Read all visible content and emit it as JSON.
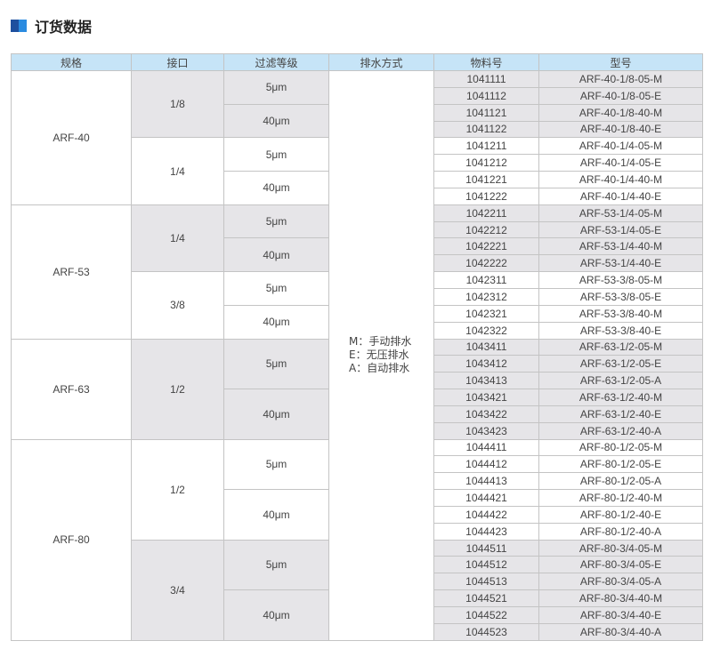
{
  "title": "订货数据",
  "colors": {
    "header_bg": "#c6e4f7",
    "shade": "#e6e5e8",
    "accent_dark": "#1d4f9e",
    "accent_light": "#2a8be0"
  },
  "headers": [
    "规格",
    "接口",
    "过滤等级",
    "排水方式",
    "物料号",
    "型号"
  ],
  "drain_options": [
    "M：手动排水",
    "E：无压排水",
    "A：自动排水"
  ],
  "specs": [
    {
      "name": "ARF-40",
      "ports": [
        {
          "port": "1/8",
          "shaded": true,
          "filters": [
            {
              "grade": "5μm",
              "items": [
                [
                  "1041111",
                  "ARF-40-1/8-05-M"
                ],
                [
                  "1041112",
                  "ARF-40-1/8-05-E"
                ]
              ]
            },
            {
              "grade": "40μm",
              "items": [
                [
                  "1041121",
                  "ARF-40-1/8-40-M"
                ],
                [
                  "1041122",
                  "ARF-40-1/8-40-E"
                ]
              ]
            }
          ]
        },
        {
          "port": "1/4",
          "shaded": false,
          "filters": [
            {
              "grade": "5μm",
              "items": [
                [
                  "1041211",
                  "ARF-40-1/4-05-M"
                ],
                [
                  "1041212",
                  "ARF-40-1/4-05-E"
                ]
              ]
            },
            {
              "grade": "40μm",
              "items": [
                [
                  "1041221",
                  "ARF-40-1/4-40-M"
                ],
                [
                  "1041222",
                  "ARF-40-1/4-40-E"
                ]
              ]
            }
          ]
        }
      ]
    },
    {
      "name": "ARF-53",
      "ports": [
        {
          "port": "1/4",
          "shaded": true,
          "filters": [
            {
              "grade": "5μm",
              "items": [
                [
                  "1042211",
                  "ARF-53-1/4-05-M"
                ],
                [
                  "1042212",
                  "ARF-53-1/4-05-E"
                ]
              ]
            },
            {
              "grade": "40μm",
              "items": [
                [
                  "1042221",
                  "ARF-53-1/4-40-M"
                ],
                [
                  "1042222",
                  "ARF-53-1/4-40-E"
                ]
              ]
            }
          ]
        },
        {
          "port": "3/8",
          "shaded": false,
          "filters": [
            {
              "grade": "5μm",
              "items": [
                [
                  "1042311",
                  "ARF-53-3/8-05-M"
                ],
                [
                  "1042312",
                  "ARF-53-3/8-05-E"
                ]
              ]
            },
            {
              "grade": "40μm",
              "items": [
                [
                  "1042321",
                  "ARF-53-3/8-40-M"
                ],
                [
                  "1042322",
                  "ARF-53-3/8-40-E"
                ]
              ]
            }
          ]
        }
      ]
    },
    {
      "name": "ARF-63",
      "ports": [
        {
          "port": "1/2",
          "shaded": true,
          "filters": [
            {
              "grade": "5μm",
              "items": [
                [
                  "1043411",
                  "ARF-63-1/2-05-M"
                ],
                [
                  "1043412",
                  "ARF-63-1/2-05-E"
                ],
                [
                  "1043413",
                  "ARF-63-1/2-05-A"
                ]
              ]
            },
            {
              "grade": "40μm",
              "items": [
                [
                  "1043421",
                  "ARF-63-1/2-40-M"
                ],
                [
                  "1043422",
                  "ARF-63-1/2-40-E"
                ],
                [
                  "1043423",
                  "ARF-63-1/2-40-A"
                ]
              ]
            }
          ]
        }
      ]
    },
    {
      "name": "ARF-80",
      "ports": [
        {
          "port": "1/2",
          "shaded": false,
          "filters": [
            {
              "grade": "5μm",
              "items": [
                [
                  "1044411",
                  "ARF-80-1/2-05-M"
                ],
                [
                  "1044412",
                  "ARF-80-1/2-05-E"
                ],
                [
                  "1044413",
                  "ARF-80-1/2-05-A"
                ]
              ]
            },
            {
              "grade": "40μm",
              "items": [
                [
                  "1044421",
                  "ARF-80-1/2-40-M"
                ],
                [
                  "1044422",
                  "ARF-80-1/2-40-E"
                ],
                [
                  "1044423",
                  "ARF-80-1/2-40-A"
                ]
              ]
            }
          ]
        },
        {
          "port": "3/4",
          "shaded": true,
          "filters": [
            {
              "grade": "5μm",
              "items": [
                [
                  "1044511",
                  "ARF-80-3/4-05-M"
                ],
                [
                  "1044512",
                  "ARF-80-3/4-05-E"
                ],
                [
                  "1044513",
                  "ARF-80-3/4-05-A"
                ]
              ]
            },
            {
              "grade": "40μm",
              "items": [
                [
                  "1044521",
                  "ARF-80-3/4-40-M"
                ],
                [
                  "1044522",
                  "ARF-80-3/4-40-E"
                ],
                [
                  "1044523",
                  "ARF-80-3/4-40-A"
                ]
              ]
            }
          ]
        }
      ]
    }
  ]
}
